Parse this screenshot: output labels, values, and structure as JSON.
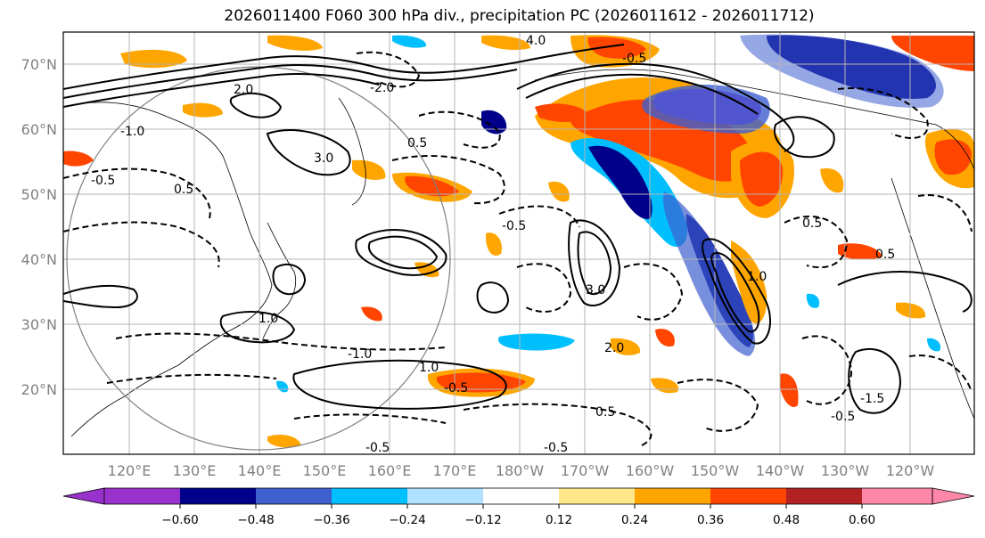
{
  "title": "2026011400 F060 300 hPa div., precipitation PC (2026011612 - 2026011712)",
  "lat_labels": [
    "70°N",
    "60°N",
    "50°N",
    "40°N",
    "30°N",
    "20°N"
  ],
  "lon_labels": [
    "120°E",
    "130°E",
    "140°E",
    "150°E",
    "160°E",
    "170°E",
    "180°W",
    "170°W",
    "160°W",
    "150°W",
    "140°W",
    "130°W",
    "120°W"
  ],
  "colorbar": {
    "ticks": [
      "−0.60",
      "−0.48",
      "−0.36",
      "−0.24",
      "−0.12",
      "0.12",
      "0.24",
      "0.36",
      "0.48",
      "0.60"
    ],
    "colors": [
      "#9932CC",
      "#00008B",
      "#3F5FCF",
      "#00BFFF",
      "#B0E2FF",
      "#FFFFFF",
      "#FFE88A",
      "#FFA500",
      "#FF4500",
      "#B22222",
      "#FF88AA"
    ]
  },
  "contour_labels": [
    "-0.5",
    "0.5",
    "-1.0",
    "1.0",
    "-2.0",
    "2.0",
    "3.0",
    "4.0",
    "-0.5",
    "0.5",
    "-0.5",
    "-1.0",
    "1.0",
    "-0.5",
    "-0.5",
    "0.5",
    "-1.5",
    "0.5",
    "-0.5",
    "1.0",
    "0.5",
    "-0.5",
    "2.0",
    "3.0"
  ]
}
